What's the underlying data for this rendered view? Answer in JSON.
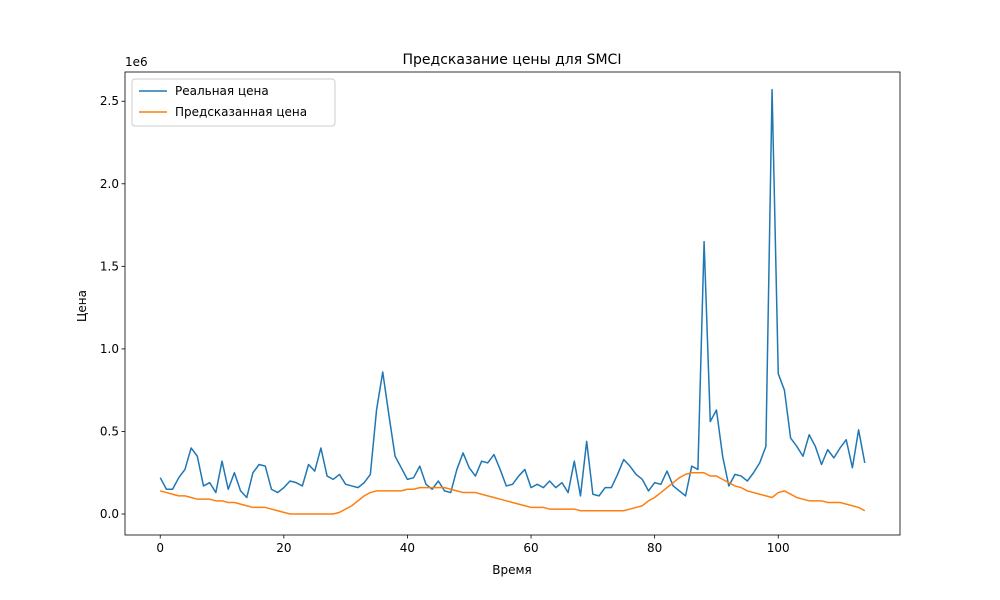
{
  "chart_data": {
    "type": "line",
    "title": "Предсказание цены для SMCI",
    "xlabel": "Время",
    "ylabel": "Цена",
    "y_offset_label": "1e6",
    "xlim": [
      -5.7,
      119.7
    ],
    "ylim": [
      -0.127,
      2.677
    ],
    "x_ticks": [
      0,
      20,
      40,
      60,
      80,
      100
    ],
    "y_ticks": [
      0.0,
      0.5,
      1.0,
      1.5,
      2.0,
      2.5
    ],
    "legend_position": "upper-left",
    "series": [
      {
        "name": "Реальная цена",
        "color": "#1f77b4",
        "values": [
          0.22,
          0.15,
          0.15,
          0.22,
          0.27,
          0.4,
          0.35,
          0.17,
          0.19,
          0.13,
          0.32,
          0.15,
          0.25,
          0.14,
          0.1,
          0.25,
          0.3,
          0.29,
          0.15,
          0.13,
          0.16,
          0.2,
          0.19,
          0.17,
          0.3,
          0.26,
          0.4,
          0.23,
          0.21,
          0.24,
          0.18,
          0.17,
          0.16,
          0.19,
          0.24,
          0.63,
          0.86,
          0.6,
          0.35,
          0.28,
          0.21,
          0.22,
          0.29,
          0.18,
          0.15,
          0.2,
          0.14,
          0.13,
          0.27,
          0.37,
          0.28,
          0.23,
          0.32,
          0.31,
          0.36,
          0.27,
          0.17,
          0.18,
          0.23,
          0.27,
          0.16,
          0.18,
          0.16,
          0.2,
          0.16,
          0.19,
          0.13,
          0.32,
          0.11,
          0.44,
          0.12,
          0.11,
          0.16,
          0.16,
          0.24,
          0.33,
          0.29,
          0.24,
          0.21,
          0.14,
          0.19,
          0.18,
          0.26,
          0.17,
          0.14,
          0.11,
          0.29,
          0.27,
          1.65,
          0.56,
          0.63,
          0.35,
          0.17,
          0.24,
          0.23,
          0.2,
          0.25,
          0.31,
          0.41,
          2.57,
          0.85,
          0.75,
          0.46,
          0.41,
          0.35,
          0.48,
          0.41,
          0.3,
          0.39,
          0.34,
          0.4,
          0.45,
          0.28,
          0.51,
          0.31
        ]
      },
      {
        "name": "Предсказанная цена",
        "color": "#ff7f0e",
        "values": [
          0.14,
          0.13,
          0.12,
          0.11,
          0.11,
          0.1,
          0.09,
          0.09,
          0.09,
          0.08,
          0.08,
          0.07,
          0.07,
          0.06,
          0.05,
          0.04,
          0.04,
          0.04,
          0.03,
          0.02,
          0.01,
          0.0,
          0.0,
          0.0,
          0.0,
          0.0,
          0.0,
          0.0,
          0.0,
          0.01,
          0.03,
          0.05,
          0.08,
          0.11,
          0.13,
          0.14,
          0.14,
          0.14,
          0.14,
          0.14,
          0.15,
          0.15,
          0.16,
          0.16,
          0.16,
          0.16,
          0.16,
          0.15,
          0.14,
          0.13,
          0.13,
          0.13,
          0.12,
          0.11,
          0.1,
          0.09,
          0.08,
          0.07,
          0.06,
          0.05,
          0.04,
          0.04,
          0.04,
          0.03,
          0.03,
          0.03,
          0.03,
          0.03,
          0.02,
          0.02,
          0.02,
          0.02,
          0.02,
          0.02,
          0.02,
          0.02,
          0.03,
          0.04,
          0.05,
          0.08,
          0.1,
          0.13,
          0.16,
          0.19,
          0.22,
          0.24,
          0.25,
          0.25,
          0.25,
          0.23,
          0.23,
          0.21,
          0.19,
          0.17,
          0.16,
          0.14,
          0.13,
          0.12,
          0.11,
          0.1,
          0.13,
          0.14,
          0.12,
          0.1,
          0.09,
          0.08,
          0.08,
          0.08,
          0.07,
          0.07,
          0.07,
          0.06,
          0.05,
          0.04,
          0.02
        ]
      }
    ]
  }
}
